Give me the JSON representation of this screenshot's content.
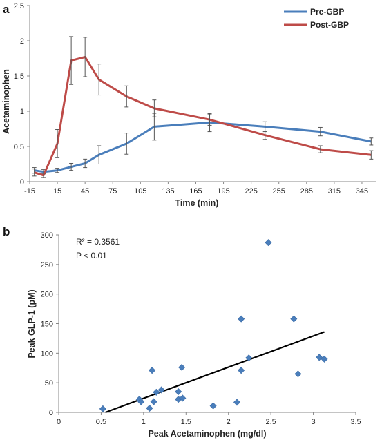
{
  "chart_data": [
    {
      "type": "line",
      "panel_label": "a",
      "title": "",
      "xlabel": "Time (min)",
      "ylabel": "Acetaminophen",
      "xlim": [
        -15,
        360
      ],
      "ylim": [
        0,
        2.5
      ],
      "x_ticks": [
        "-15",
        "15",
        "45",
        "75",
        "105",
        "135",
        "165",
        "195",
        "225",
        "255",
        "285",
        "315",
        "345"
      ],
      "y_ticks": [
        "0",
        "0.5",
        "1",
        "1.5",
        "2",
        "2.5"
      ],
      "legend_position": "top-right",
      "x": [
        -10,
        0,
        15,
        30,
        45,
        60,
        90,
        120,
        180,
        240,
        300,
        355
      ],
      "series": [
        {
          "name": "Pre-GBP",
          "color": "#4a7ebb",
          "values": [
            0.16,
            0.14,
            0.16,
            0.21,
            0.26,
            0.38,
            0.54,
            0.78,
            0.84,
            0.78,
            0.71,
            0.57
          ],
          "errors": [
            0.04,
            0.03,
            0.03,
            0.05,
            0.06,
            0.13,
            0.15,
            0.19,
            0.13,
            0.07,
            0.06,
            0.05
          ]
        },
        {
          "name": "Post-GBP",
          "color": "#be4b48",
          "values": [
            0.13,
            0.09,
            0.54,
            1.72,
            1.77,
            1.45,
            1.21,
            1.04,
            0.88,
            0.66,
            0.46,
            0.38
          ],
          "errors": [
            0.05,
            0.03,
            0.2,
            0.34,
            0.28,
            0.22,
            0.15,
            0.12,
            0.08,
            0.06,
            0.05,
            0.06
          ]
        }
      ]
    },
    {
      "type": "scatter",
      "panel_label": "b",
      "title": "",
      "xlabel": "Peak Acetaminophen (mg/dl)",
      "ylabel": "Peak GLP-1 (pM)",
      "xlim": [
        0,
        3.5
      ],
      "ylim": [
        0,
        300
      ],
      "x_ticks": [
        "0",
        "0.5",
        "1",
        "1.5",
        "2",
        "2.5",
        "3",
        "3.5"
      ],
      "y_ticks": [
        "0",
        "50",
        "100",
        "150",
        "200",
        "250",
        "300"
      ],
      "marker_color": "#4a7ebb",
      "annotations": [
        "R² = 0.3561",
        "P < 0.01"
      ],
      "trendline": {
        "x": [
          0.55,
          3.13
        ],
        "y": [
          0,
          136
        ]
      },
      "points": [
        {
          "x": 0.52,
          "y": 6
        },
        {
          "x": 0.95,
          "y": 22
        },
        {
          "x": 0.97,
          "y": 18
        },
        {
          "x": 1.07,
          "y": 7
        },
        {
          "x": 1.1,
          "y": 71
        },
        {
          "x": 1.12,
          "y": 18
        },
        {
          "x": 1.15,
          "y": 34
        },
        {
          "x": 1.21,
          "y": 38
        },
        {
          "x": 1.41,
          "y": 35
        },
        {
          "x": 1.41,
          "y": 22
        },
        {
          "x": 1.45,
          "y": 76
        },
        {
          "x": 1.46,
          "y": 24
        },
        {
          "x": 1.82,
          "y": 11
        },
        {
          "x": 2.1,
          "y": 17
        },
        {
          "x": 2.15,
          "y": 158
        },
        {
          "x": 2.15,
          "y": 71
        },
        {
          "x": 2.24,
          "y": 92
        },
        {
          "x": 2.47,
          "y": 287
        },
        {
          "x": 2.77,
          "y": 158
        },
        {
          "x": 2.82,
          "y": 65
        },
        {
          "x": 3.07,
          "y": 93
        },
        {
          "x": 3.13,
          "y": 90
        }
      ]
    }
  ]
}
